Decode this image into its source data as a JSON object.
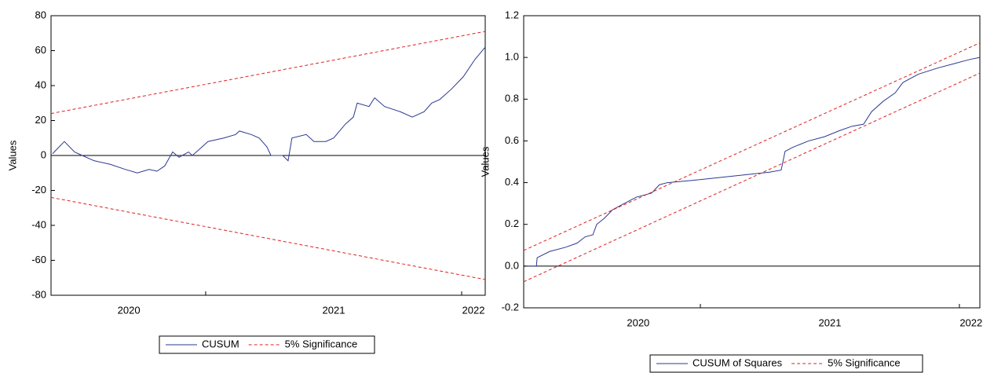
{
  "chart_data": [
    {
      "type": "line",
      "ylabel": "Values",
      "xlim": [
        2020.396,
        2022.092
      ],
      "ylim": [
        -80,
        80
      ],
      "yticks": [
        -80,
        -60,
        -40,
        -20,
        0,
        20,
        40,
        60,
        80
      ],
      "xticks": [
        {
          "value": 2020.7,
          "label": "2020"
        },
        {
          "value": 2021.5,
          "label": "2021"
        },
        {
          "value": 2022.046,
          "label": "2022"
        }
      ],
      "xtick_marks": [
        2021,
        2022
      ],
      "hline": 0,
      "series": [
        {
          "name": "CUSUM",
          "color": "#2b3990",
          "dashed": false,
          "x": [
            2020.402,
            2020.448,
            2020.488,
            2020.518,
            2020.564,
            2020.626,
            2020.687,
            2020.733,
            2020.779,
            2020.81,
            2020.84,
            2020.871,
            2020.896,
            2020.933,
            2020.948,
            2020.979,
            2021.009,
            2021.071,
            2021.117,
            2021.132,
            2021.178,
            2021.209,
            2021.239,
            2021.255,
            2021.301,
            2021.322,
            2021.337,
            2021.393,
            2021.423,
            2021.469,
            2021.5,
            2021.546,
            2021.577,
            2021.592,
            2021.638,
            2021.66,
            2021.699,
            2021.761,
            2021.807,
            2021.853,
            2021.883,
            2021.914,
            2021.96,
            2022.006,
            2022.052,
            2022.092
          ],
          "values": [
            1,
            8,
            2,
            0,
            -3,
            -5,
            -8,
            -10,
            -8,
            -9,
            -6,
            2,
            -1,
            2,
            0,
            4,
            8,
            10,
            12,
            14,
            12,
            10,
            5,
            0,
            0,
            -3,
            10,
            12,
            8,
            8,
            10,
            18,
            22,
            30,
            28,
            33,
            28,
            25,
            22,
            25,
            30,
            32,
            38,
            45,
            55,
            62
          ]
        },
        {
          "name": "5% Significance",
          "color": "#e02020",
          "dashed": true,
          "x": [
            2020.396,
            2022.092
          ],
          "values": [
            24,
            71
          ],
          "lower": [
            -24,
            -71
          ]
        }
      ]
    },
    {
      "type": "line",
      "ylabel": "Values",
      "xlim": [
        2020.318,
        2022.079
      ],
      "ylim": [
        -0.2,
        1.2
      ],
      "yticks": [
        -0.2,
        {
          "value": 0,
          "label": "0.0"
        },
        0.2,
        0.4,
        0.6,
        0.8,
        {
          "value": 1,
          "label": "1.0"
        },
        1.2
      ],
      "xticks": [
        {
          "value": 2020.76,
          "label": "2020"
        },
        {
          "value": 2021.5,
          "label": "2021"
        },
        {
          "value": 2022.045,
          "label": "2022"
        }
      ],
      "xtick_marks": [
        2021,
        2022
      ],
      "hline": 0,
      "series": [
        {
          "name": "CUSUM of Squares",
          "color": "#2b3990",
          "dashed": false,
          "x": [
            2020.327,
            2020.367,
            2020.37,
            2020.418,
            2020.479,
            2020.524,
            2020.555,
            2020.585,
            2020.6,
            2020.63,
            2020.661,
            2020.691,
            2020.752,
            2020.812,
            2020.842,
            2020.873,
            2020.964,
            2021.115,
            2021.267,
            2021.312,
            2021.327,
            2021.358,
            2021.418,
            2021.479,
            2021.539,
            2021.585,
            2021.63,
            2021.661,
            2021.706,
            2021.752,
            2021.782,
            2021.842,
            2021.918,
            2021.979,
            2022.039,
            2022.079
          ],
          "values": [
            0,
            0,
            0.04,
            0.07,
            0.09,
            0.11,
            0.14,
            0.15,
            0.2,
            0.23,
            0.27,
            0.29,
            0.33,
            0.35,
            0.39,
            0.4,
            0.41,
            0.43,
            0.45,
            0.46,
            0.55,
            0.57,
            0.6,
            0.62,
            0.65,
            0.67,
            0.68,
            0.74,
            0.79,
            0.83,
            0.88,
            0.92,
            0.95,
            0.97,
            0.99,
            1.0
          ]
        },
        {
          "name": "5% Significance",
          "color": "#e02020",
          "dashed": true,
          "x": [
            2020.318,
            2022.079
          ],
          "values": [
            0.075,
            1.07
          ],
          "lower": [
            -0.075,
            0.925
          ]
        }
      ]
    }
  ]
}
